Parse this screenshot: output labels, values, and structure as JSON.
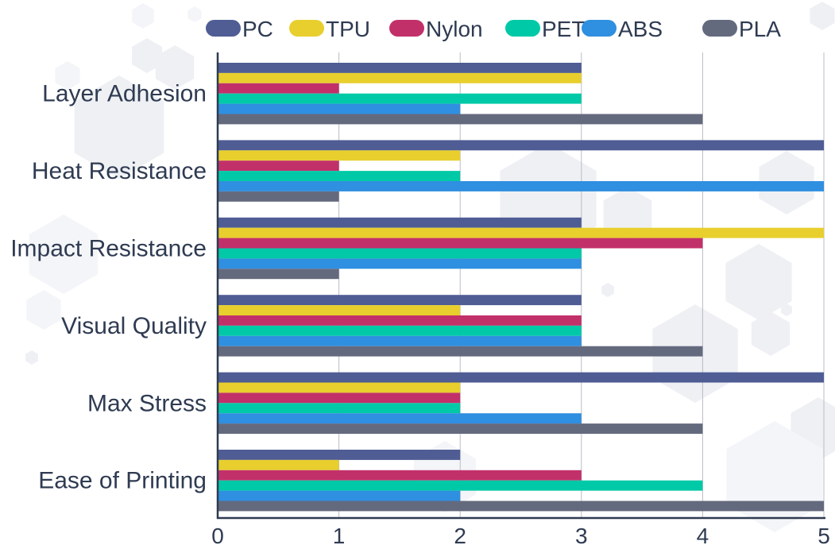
{
  "chart_data": {
    "type": "bar",
    "orientation": "horizontal",
    "title": "",
    "xlabel": "",
    "ylabel": "",
    "xlim": [
      0,
      5
    ],
    "xticks": [
      "0",
      "1",
      "2",
      "3",
      "4",
      "5"
    ],
    "grid": true,
    "legend_position": "top",
    "categories": [
      "Layer Adhesion",
      "Heat Resistance",
      "Impact Resistance",
      "Visual Quality",
      "Max Stress",
      "Ease of Printing"
    ],
    "series": [
      {
        "name": "PC",
        "color": "#4f5d94",
        "values": [
          3,
          5,
          3,
          3,
          5,
          2
        ]
      },
      {
        "name": "TPU",
        "color": "#e8cf2e",
        "values": [
          3,
          2,
          5,
          2,
          2,
          1
        ]
      },
      {
        "name": "Nylon",
        "color": "#c2306a",
        "values": [
          1,
          1,
          4,
          3,
          2,
          3
        ]
      },
      {
        "name": "PET",
        "color": "#00c9a7",
        "values": [
          3,
          2,
          3,
          3,
          2,
          4
        ]
      },
      {
        "name": "ABS",
        "color": "#2f8fe0",
        "values": [
          2,
          5,
          3,
          3,
          3,
          2
        ]
      },
      {
        "name": "PLA",
        "color": "#646a7e",
        "values": [
          4,
          1,
          1,
          4,
          4,
          5
        ]
      }
    ]
  }
}
